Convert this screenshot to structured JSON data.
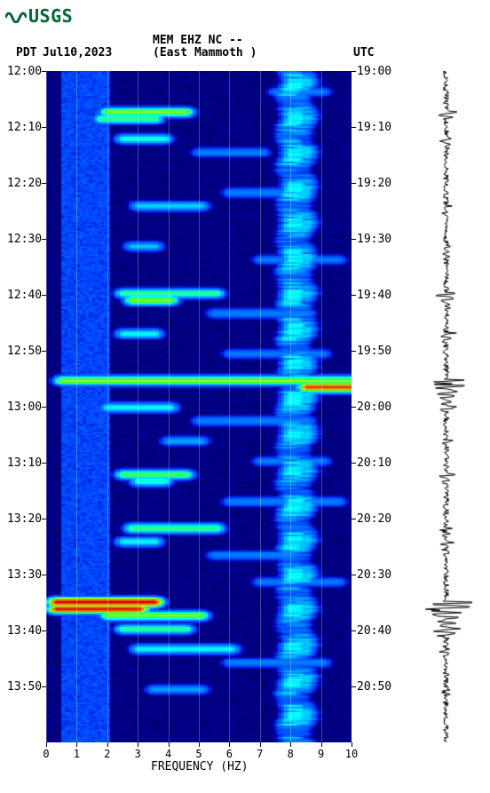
{
  "logo": {
    "text": "USGS"
  },
  "header": {
    "pdt": "PDT",
    "date": "Jul10,2023",
    "station": "MEM EHZ NC --",
    "location": "(East Mammoth )",
    "utc": "UTC"
  },
  "spectrogram": {
    "type": "spectrogram",
    "x_range": [
      0,
      10
    ],
    "x_ticks": [
      0,
      1,
      2,
      3,
      4,
      5,
      6,
      7,
      8,
      9,
      10
    ],
    "x_label": "FREQUENCY (HZ)",
    "y_left_ticks": [
      "12:00",
      "12:10",
      "12:20",
      "12:30",
      "12:40",
      "12:50",
      "13:00",
      "13:10",
      "13:20",
      "13:30",
      "13:40",
      "13:50"
    ],
    "y_right_ticks": [
      "19:00",
      "19:10",
      "19:20",
      "19:30",
      "19:40",
      "19:50",
      "20:00",
      "20:10",
      "20:20",
      "20:30",
      "20:40",
      "20:50"
    ],
    "grid_x_positions": [
      0,
      1,
      2,
      3,
      4,
      5,
      6,
      7,
      8,
      9,
      10
    ],
    "colormap": {
      "bg_dark": "#00004c",
      "bg_mid": "#0000aa",
      "bg_light": "#0040ff",
      "low": "#0080ff",
      "cyan": "#00ffff",
      "green": "#40ff40",
      "yellow": "#ffff00",
      "orange": "#ff8000",
      "red": "#cc0000"
    },
    "base_noise_band_hz": [
      0.5,
      2.0
    ],
    "hot_events": [
      {
        "t": 0.06,
        "f0": 2.0,
        "f1": 4.5,
        "intensity": 0.7
      },
      {
        "t": 0.07,
        "f0": 1.8,
        "f1": 3.5,
        "intensity": 0.6
      },
      {
        "t": 0.1,
        "f0": 2.5,
        "f1": 3.8,
        "intensity": 0.55
      },
      {
        "t": 0.2,
        "f0": 3.0,
        "f1": 5.0,
        "intensity": 0.45
      },
      {
        "t": 0.26,
        "f0": 2.8,
        "f1": 3.5,
        "intensity": 0.45
      },
      {
        "t": 0.33,
        "f0": 2.5,
        "f1": 5.5,
        "intensity": 0.6
      },
      {
        "t": 0.34,
        "f0": 2.8,
        "f1": 4.0,
        "intensity": 0.7
      },
      {
        "t": 0.39,
        "f0": 2.5,
        "f1": 3.5,
        "intensity": 0.5
      },
      {
        "t": 0.46,
        "f0": 0.5,
        "f1": 10.0,
        "intensity": 0.7
      },
      {
        "t": 0.47,
        "f0": 8.5,
        "f1": 10.0,
        "intensity": 0.95
      },
      {
        "t": 0.5,
        "f0": 2.0,
        "f1": 4.0,
        "intensity": 0.5
      },
      {
        "t": 0.55,
        "f0": 4.0,
        "f1": 5.0,
        "intensity": 0.4
      },
      {
        "t": 0.6,
        "f0": 2.5,
        "f1": 4.5,
        "intensity": 0.65
      },
      {
        "t": 0.61,
        "f0": 3.0,
        "f1": 3.8,
        "intensity": 0.55
      },
      {
        "t": 0.68,
        "f0": 2.8,
        "f1": 5.5,
        "intensity": 0.6
      },
      {
        "t": 0.7,
        "f0": 2.5,
        "f1": 3.5,
        "intensity": 0.5
      },
      {
        "t": 0.79,
        "f0": 0.3,
        "f1": 3.5,
        "intensity": 1.0
      },
      {
        "t": 0.8,
        "f0": 0.3,
        "f1": 3.0,
        "intensity": 0.98
      },
      {
        "t": 0.81,
        "f0": 2.0,
        "f1": 5.0,
        "intensity": 0.7
      },
      {
        "t": 0.83,
        "f0": 2.5,
        "f1": 4.5,
        "intensity": 0.6
      },
      {
        "t": 0.86,
        "f0": 3.0,
        "f1": 6.0,
        "intensity": 0.5
      },
      {
        "t": 0.92,
        "f0": 3.5,
        "f1": 5.0,
        "intensity": 0.4
      }
    ],
    "narrowband_lines": [
      {
        "hz": 8.0,
        "intensity": 0.5
      },
      {
        "hz": 8.3,
        "intensity": 0.45
      }
    ],
    "faint_events": [
      {
        "t": 0.03,
        "f0": 7.5,
        "f1": 9.0
      },
      {
        "t": 0.12,
        "f0": 5.0,
        "f1": 7.0
      },
      {
        "t": 0.18,
        "f0": 6.0,
        "f1": 8.0
      },
      {
        "t": 0.28,
        "f0": 7.0,
        "f1": 9.5
      },
      {
        "t": 0.36,
        "f0": 5.5,
        "f1": 8.5
      },
      {
        "t": 0.42,
        "f0": 6.0,
        "f1": 9.0
      },
      {
        "t": 0.52,
        "f0": 5.0,
        "f1": 8.5
      },
      {
        "t": 0.58,
        "f0": 7.0,
        "f1": 9.0
      },
      {
        "t": 0.64,
        "f0": 6.0,
        "f1": 9.5
      },
      {
        "t": 0.72,
        "f0": 5.5,
        "f1": 8.0
      },
      {
        "t": 0.76,
        "f0": 7.0,
        "f1": 9.5
      },
      {
        "t": 0.88,
        "f0": 6.0,
        "f1": 9.0
      }
    ]
  },
  "seismogram": {
    "color": "#000000",
    "baseline_noise_amp": 0.08,
    "events": [
      {
        "t": 0.06,
        "amp": 0.3,
        "dur": 0.012
      },
      {
        "t": 0.1,
        "amp": 0.22,
        "dur": 0.01
      },
      {
        "t": 0.2,
        "amp": 0.18,
        "dur": 0.008
      },
      {
        "t": 0.26,
        "amp": 0.2,
        "dur": 0.009
      },
      {
        "t": 0.33,
        "amp": 0.32,
        "dur": 0.012
      },
      {
        "t": 0.39,
        "amp": 0.25,
        "dur": 0.01
      },
      {
        "t": 0.46,
        "amp": 0.75,
        "dur": 0.018
      },
      {
        "t": 0.5,
        "amp": 0.22,
        "dur": 0.01
      },
      {
        "t": 0.55,
        "amp": 0.18,
        "dur": 0.008
      },
      {
        "t": 0.6,
        "amp": 0.28,
        "dur": 0.011
      },
      {
        "t": 0.68,
        "amp": 0.26,
        "dur": 0.01
      },
      {
        "t": 0.7,
        "amp": 0.22,
        "dur": 0.009
      },
      {
        "t": 0.79,
        "amp": 1.0,
        "dur": 0.022
      },
      {
        "t": 0.83,
        "amp": 0.3,
        "dur": 0.011
      },
      {
        "t": 0.86,
        "amp": 0.2,
        "dur": 0.008
      },
      {
        "t": 0.92,
        "amp": 0.16,
        "dur": 0.007
      }
    ]
  }
}
